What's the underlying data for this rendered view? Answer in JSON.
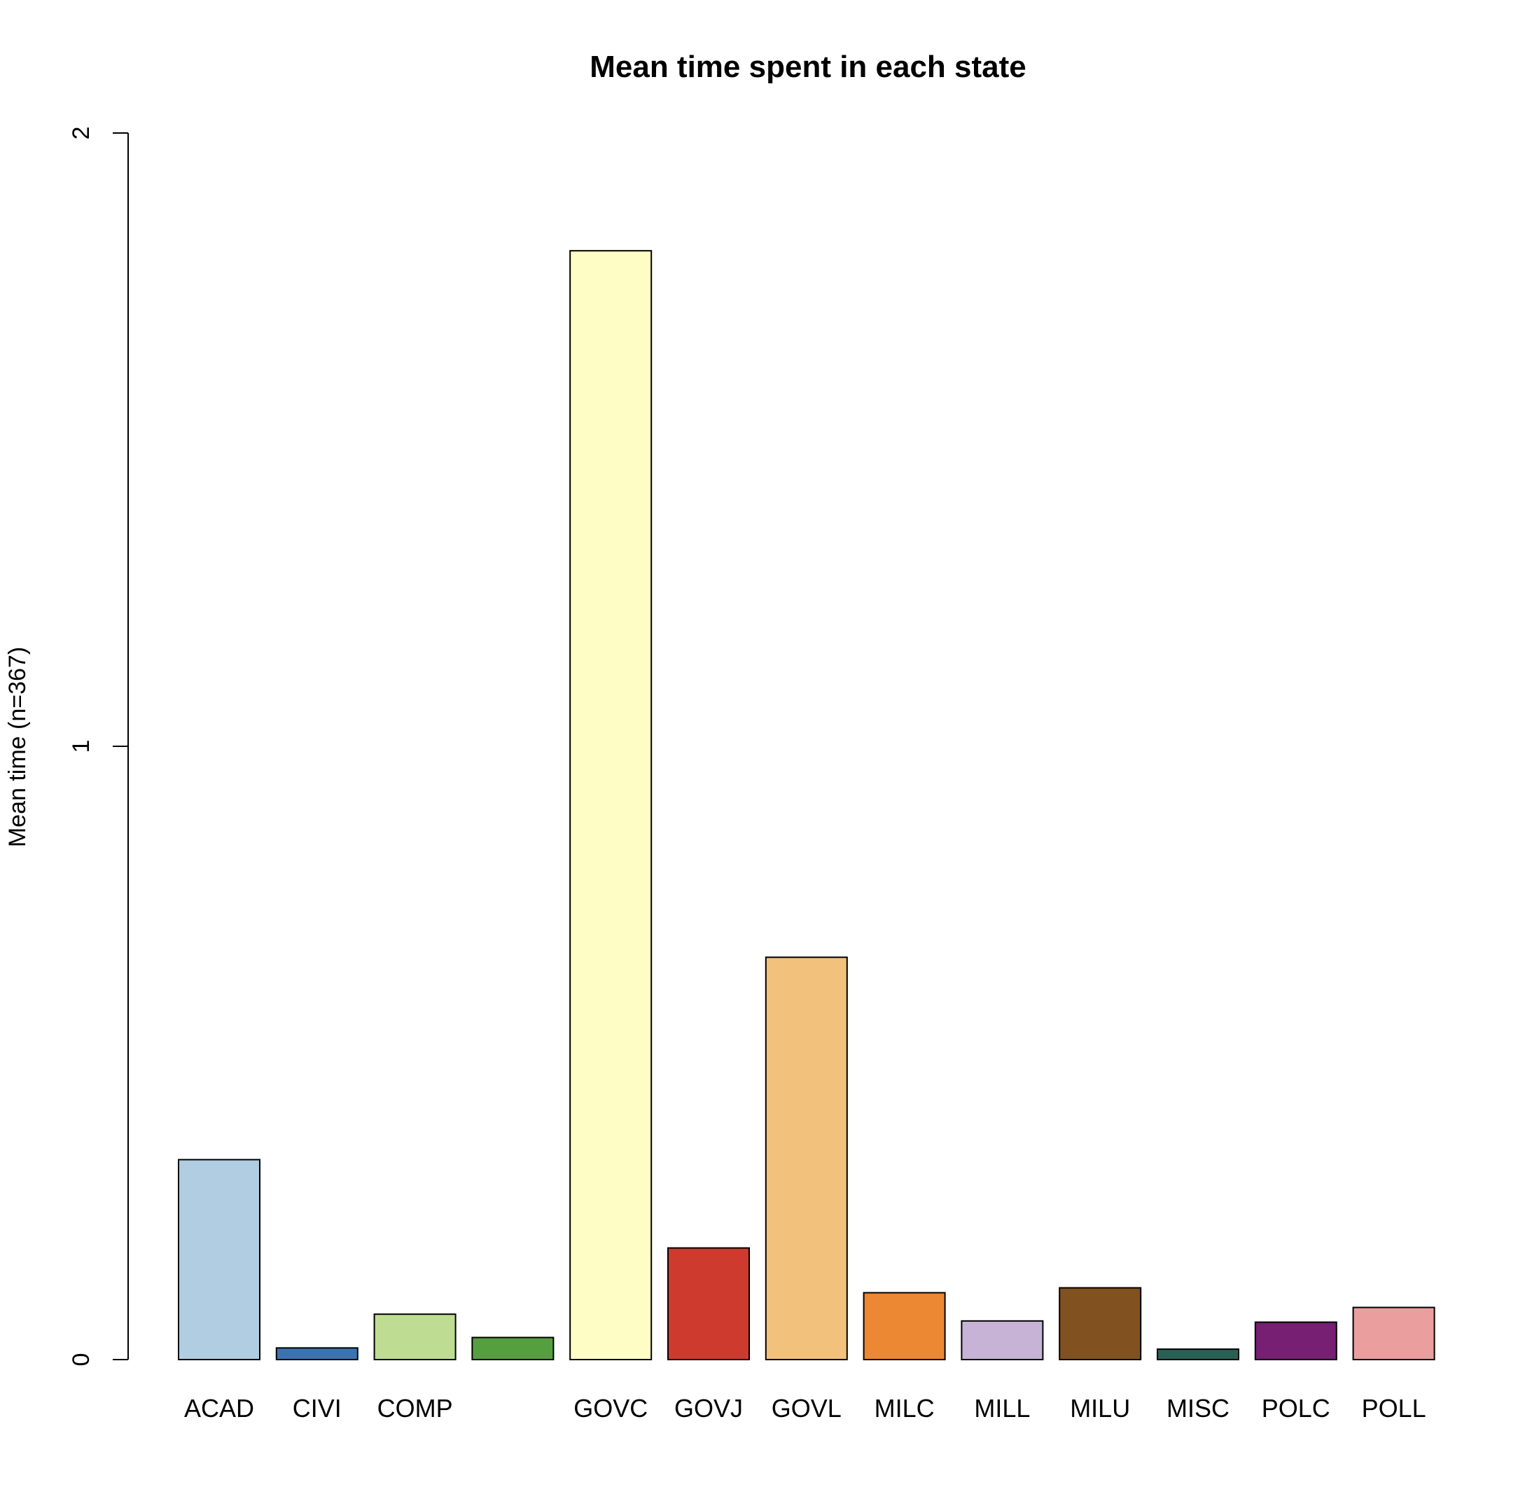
{
  "chart_data": {
    "type": "bar",
    "title": "Mean time spent in each state",
    "xlabel": "",
    "ylabel": "Mean time (n=367)",
    "ylim": [
      0,
      2
    ],
    "yticks": [
      "0",
      "1",
      "2"
    ],
    "grid": false,
    "categories": [
      "ACAD",
      "CIVI",
      "COMP",
      "",
      "GOVC",
      "GOVJ",
      "GOVL",
      "MILC",
      "MILL",
      "MILU",
      "MISC",
      "POLC",
      "POLL"
    ],
    "values": [
      0.326,
      0.019,
      0.074,
      0.036,
      1.808,
      0.182,
      0.656,
      0.109,
      0.063,
      0.117,
      0.017,
      0.061,
      0.085
    ],
    "colors": [
      "#B0CDE1",
      "#3B73B0",
      "#BEDD92",
      "#569F40",
      "#FFFDC6",
      "#CE3A2D",
      "#F2C17B",
      "#EC8733",
      "#C6B3D6",
      "#81511F",
      "#2A5F54",
      "#761F73",
      "#EB9E9E"
    ]
  }
}
